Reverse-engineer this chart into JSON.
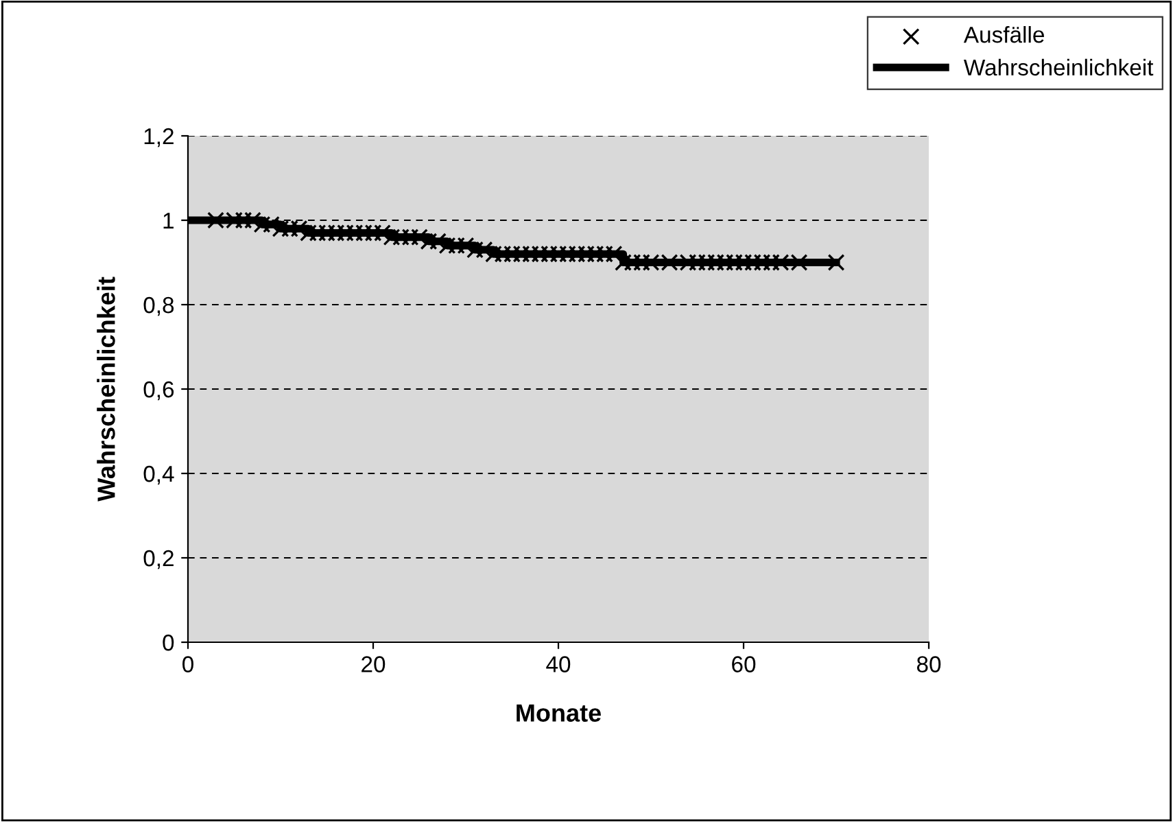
{
  "chart_data": {
    "type": "scatter",
    "xlabel": "Monate",
    "ylabel": "Wahrscheinlichkeit",
    "xlim": [
      0,
      80
    ],
    "xticks": [
      0,
      20,
      40,
      60,
      80
    ],
    "ylim": [
      0,
      1.2
    ],
    "yticks": [
      0,
      {
        "value": 0.2,
        "label": "0,2"
      },
      {
        "value": 0.4,
        "label": "0,4"
      },
      {
        "value": 0.6,
        "label": "0,6"
      },
      {
        "value": 0.8,
        "label": "0,8"
      },
      1,
      {
        "value": 1.2,
        "label": "1,2"
      }
    ],
    "grid": "y",
    "legend": "top right",
    "series": [
      {
        "name": "Ausfälle",
        "marker": "cross",
        "color": "#000000",
        "x": [
          3,
          5,
          6,
          7,
          8,
          9,
          10,
          11,
          12,
          13,
          14,
          15,
          16,
          17,
          18,
          19,
          20,
          21,
          22,
          23,
          24,
          25,
          26,
          27,
          28,
          29,
          30,
          31,
          32,
          33,
          34,
          35,
          36,
          37,
          38,
          39,
          40,
          41,
          42,
          43,
          44,
          45,
          46,
          47,
          48,
          49,
          50,
          52,
          54,
          55,
          56,
          57,
          58,
          59,
          60,
          61,
          62,
          63,
          64,
          66,
          70
        ],
        "values": [
          1,
          1,
          1,
          1,
          0.99,
          0.99,
          0.98,
          0.98,
          0.98,
          0.97,
          0.97,
          0.97,
          0.97,
          0.97,
          0.97,
          0.97,
          0.97,
          0.97,
          0.96,
          0.96,
          0.96,
          0.96,
          0.95,
          0.95,
          0.94,
          0.94,
          0.94,
          0.93,
          0.93,
          0.92,
          0.92,
          0.92,
          0.92,
          0.92,
          0.92,
          0.92,
          0.92,
          0.92,
          0.92,
          0.92,
          0.92,
          0.92,
          0.92,
          0.9,
          0.9,
          0.9,
          0.9,
          0.9,
          0.9,
          0.9,
          0.9,
          0.9,
          0.9,
          0.9,
          0.9,
          0.9,
          0.9,
          0.9,
          0.9,
          0.9,
          0.9
        ]
      },
      {
        "name": "Wahrscheinlichkeit",
        "type": "step",
        "marker": "none",
        "line_style": "solid",
        "color": "#000000",
        "x": [
          0,
          8,
          10,
          13,
          22,
          26,
          28,
          31,
          33,
          47,
          70
        ],
        "values": [
          1,
          0.99,
          0.98,
          0.97,
          0.96,
          0.95,
          0.94,
          0.93,
          0.92,
          0.9,
          0.9
        ]
      }
    ]
  }
}
